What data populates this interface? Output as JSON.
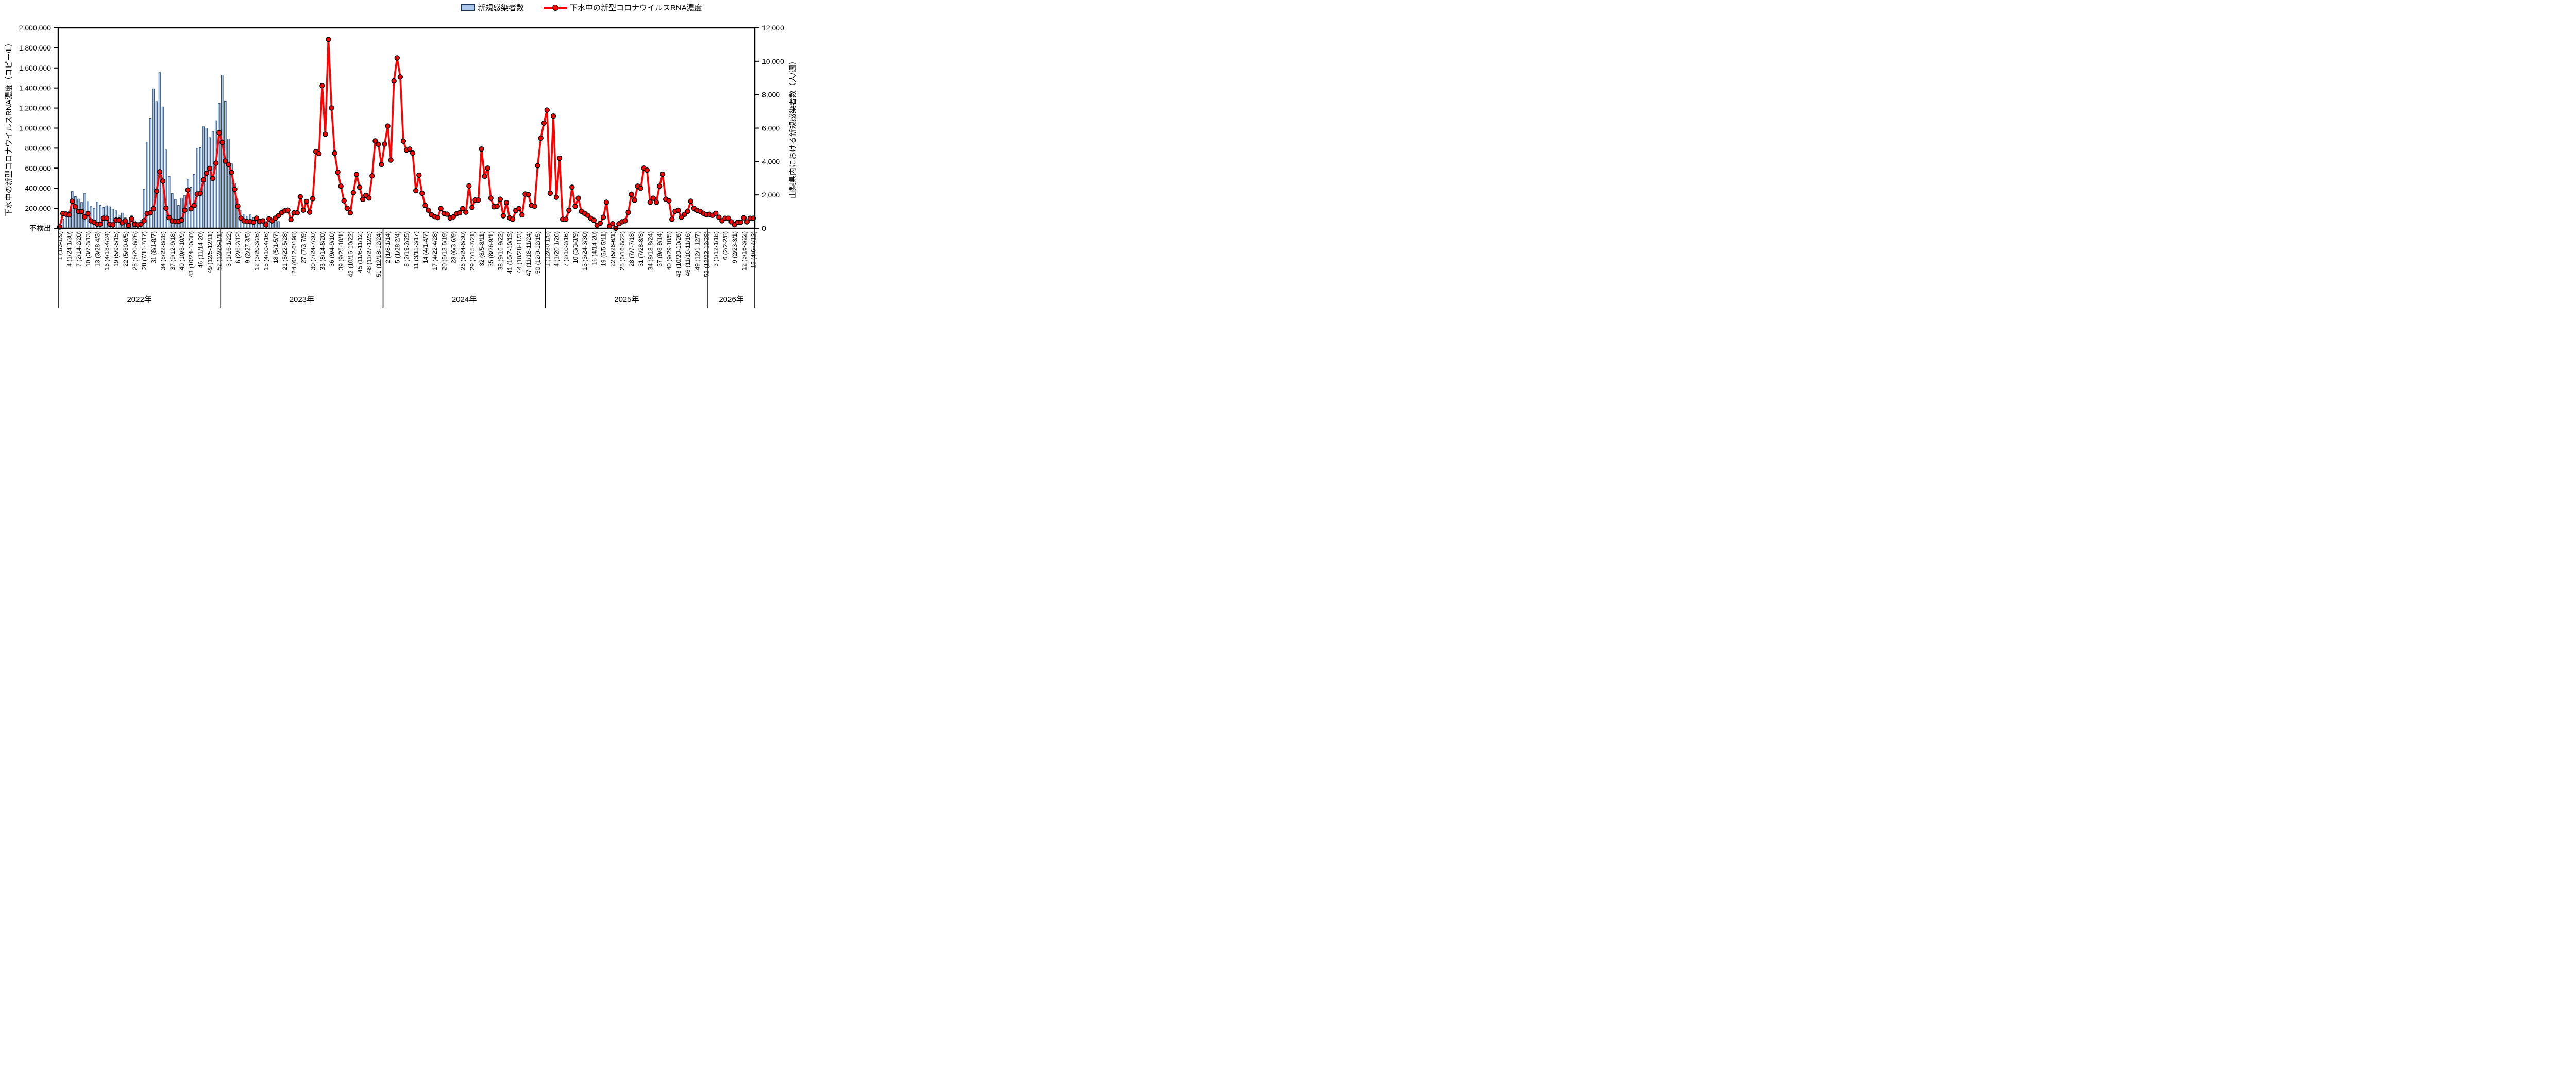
{
  "chart_data": {
    "type": "combo_bar_line",
    "legend_position": "top",
    "background": "#ffffff",
    "axis_color": "#000000",
    "y_left": {
      "label": "下水中の新型コロナウイルスRNA濃度（コピー/L）",
      "max": 2000000,
      "tick_step": 200000,
      "tick_labels": [
        "不検出",
        "200,000",
        "400,000",
        "600,000",
        "800,000",
        "1,000,000",
        "1,200,000",
        "1,400,000",
        "1,600,000",
        "1,800,000",
        "2,000,000"
      ]
    },
    "y_right": {
      "label": "山梨県内における新規感染者数（人/週）",
      "max": 12000,
      "tick_step": 2000,
      "tick_labels": [
        "0",
        "2,000",
        "4,000",
        "6,000",
        "8,000",
        "10,000",
        "12,000"
      ]
    },
    "x_axis": {
      "years": [
        {
          "label": "2022年",
          "weeks": 52,
          "ticks": [
            [
              1,
              "1 (1/3-1/9)"
            ],
            [
              4,
              "4 (1/24-1/30)"
            ],
            [
              7,
              "7 (2/14-2/20)"
            ],
            [
              10,
              "10 (3/7-3/13)"
            ],
            [
              13,
              "13 (3/28-4/3)"
            ],
            [
              16,
              "16 (4/18-4/24)"
            ],
            [
              19,
              "19 (5/9-5/15)"
            ],
            [
              22,
              "22 (5/30-6/5)"
            ],
            [
              25,
              "25 (6/20-6/26)"
            ],
            [
              28,
              "28 (7/11-7/17)"
            ],
            [
              31,
              "31 (8/1-8/7)"
            ],
            [
              34,
              "34 (8/22-8/28)"
            ],
            [
              37,
              "37 (9/12-9/18)"
            ],
            [
              40,
              "40 (10/3-10/9)"
            ],
            [
              43,
              "43 (10/24-10/30)"
            ],
            [
              46,
              "46 (11/14-20)"
            ],
            [
              49,
              "49 (12/5-12/11)"
            ],
            [
              52,
              "52 (12/26-1/1)"
            ]
          ]
        },
        {
          "label": "2023年",
          "weeks": 52,
          "ticks": [
            [
              3,
              "3 (1/16-1/22)"
            ],
            [
              6,
              "6 (2/6-2/12)"
            ],
            [
              9,
              "9 (2/27-3/5)"
            ],
            [
              12,
              "12 (3/20-3/26)"
            ],
            [
              15,
              "15 (4/10-4/16)"
            ],
            [
              18,
              "18 (5/1-5/7)"
            ],
            [
              21,
              "21 (5/22-5/28)"
            ],
            [
              24,
              "24 (6/12-6/198)"
            ],
            [
              27,
              "27 (7/3-7/9)"
            ],
            [
              30,
              "30 (7/24-7/30)"
            ],
            [
              33,
              "33 (8/14-8/20)"
            ],
            [
              36,
              "36 (9/4-9/10)"
            ],
            [
              39,
              "39 (9/25-10/1)"
            ],
            [
              42,
              "42 (10/16-10/22)"
            ],
            [
              45,
              "45 (11/6-11/12)"
            ],
            [
              48,
              "48 (11/27-12/3)"
            ],
            [
              51,
              "51 (12/18-12/24)"
            ]
          ]
        },
        {
          "label": "2024年",
          "weeks": 52,
          "ticks": [
            [
              2,
              "2 (1/8-1/14)"
            ],
            [
              5,
              "5 (1/28-2/4)"
            ],
            [
              8,
              "8 (2/19-2/25)"
            ],
            [
              11,
              "11 (3/11-3/17)"
            ],
            [
              14,
              "14 (4/1-4/7)"
            ],
            [
              17,
              "17 (4/22-4/28)"
            ],
            [
              20,
              "20 (5/13-5/19)"
            ],
            [
              23,
              "23 (6/3-6/9)"
            ],
            [
              26,
              "26 (6/24-6/30)"
            ],
            [
              29,
              "29 (7/15-7/21)"
            ],
            [
              32,
              "32 (8/5-8/11)"
            ],
            [
              35,
              "35 (8/26-9/1)"
            ],
            [
              38,
              "38 (9/16-9/22)"
            ],
            [
              41,
              "41 (10/7-10/13)"
            ],
            [
              44,
              "44 (10/28-11/3)"
            ],
            [
              47,
              "47 (11/18-11/24)"
            ],
            [
              50,
              "50 (12/9-12/15)"
            ]
          ]
        },
        {
          "label": "2025年",
          "weeks": 52,
          "ticks": [
            [
              1,
              "1 (12/30-1/5)"
            ],
            [
              4,
              "4 (1/20-1/26)"
            ],
            [
              7,
              "7 (2/10-2/16)"
            ],
            [
              10,
              "10 (3/3-3/9)"
            ],
            [
              13,
              "13 (3/24-3/30)"
            ],
            [
              16,
              "16 (4/14-20)"
            ],
            [
              19,
              "19 (5/5-5/11)"
            ],
            [
              22,
              "22 (5/26-6/1)"
            ],
            [
              25,
              "25 (6/16-6/22)"
            ],
            [
              28,
              "28 (7/7-7/13)"
            ],
            [
              31,
              "31 (7/28-8/3)"
            ],
            [
              34,
              "34 (8/18-8/24)"
            ],
            [
              37,
              "37 (9/8-9/14)"
            ],
            [
              40,
              "40 (9/29-10/5)"
            ],
            [
              43,
              "43 (10/20-10/26)"
            ],
            [
              46,
              "46 (11/10-11/16)"
            ],
            [
              49,
              "49 (12/1-12/7)"
            ],
            [
              52,
              "52 (12/22-12/28)"
            ]
          ]
        },
        {
          "label": "2026年",
          "weeks": 15,
          "ticks": [
            [
              3,
              "3 (1/12-1/18)"
            ],
            [
              6,
              "6 (2/2-2/8)"
            ],
            [
              9,
              "9 (2/23-3/1)"
            ],
            [
              12,
              "12 (3/16-3/22)"
            ],
            [
              15,
              "15 (4/6~4/12)"
            ]
          ]
        }
      ]
    },
    "series": [
      {
        "name": "新規感染者数",
        "type": "bar",
        "axis": "right",
        "fill": "#A9C6E8",
        "border": "#17375E",
        "values": [
          100,
          550,
          1000,
          1000,
          2200,
          1900,
          1750,
          1550,
          2100,
          1600,
          1300,
          1200,
          1580,
          1370,
          1250,
          1350,
          1290,
          1150,
          1050,
          790,
          915,
          625,
          455,
          750,
          455,
          330,
          500,
          2340,
          5170,
          6590,
          8350,
          7590,
          9320,
          7270,
          4690,
          3110,
          2090,
          1730,
          1370,
          1810,
          1970,
          2940,
          2455,
          3220,
          4790,
          4830,
          6080,
          6000,
          5430,
          5800,
          6440,
          7490,
          9180,
          7610,
          5350,
          3860,
          2700,
          1690,
          1090,
          845,
          725,
          805,
          645,
          604,
          523,
          483,
          443,
          403,
          443,
          483,
          403
        ]
      },
      {
        "name": "下水中の新型コロナウイルスRNA濃度",
        "type": "line",
        "axis": "left",
        "color": "#FF0000",
        "marker": "circle",
        "values": [
          13000,
          148000,
          141000,
          134000,
          270000,
          215000,
          168000,
          168000,
          114000,
          148000,
          74000,
          60000,
          40000,
          40000,
          101000,
          101000,
          40000,
          34000,
          81000,
          81000,
          54000,
          74000,
          27000,
          94000,
          40000,
          34000,
          40000,
          74000,
          148000,
          154000,
          195000,
          370000,
          564000,
          470000,
          201000,
          107000,
          74000,
          67000,
          67000,
          81000,
          181000,
          382000,
          195000,
          228000,
          342000,
          349000,
          483000,
          550000,
          597000,
          497000,
          650000,
          953000,
          859000,
          671000,
          637000,
          557000,
          389000,
          221000,
          101000,
          74000,
          67000,
          67000,
          60000,
          101000,
          67000,
          74000,
          34000,
          94000,
          74000,
          101000,
          127000,
          154000,
          174000,
          181000,
          87000,
          155000,
          154000,
          315000,
          181000,
          268000,
          161000,
          295000,
          765000,
          745000,
          1423000,
          939000,
          1886000,
          1201000,
          750000,
          560000,
          420000,
          275000,
          201000,
          154000,
          356000,
          537000,
          409000,
          289000,
          329000,
          302000,
          523000,
          872000,
          839000,
          637000,
          840000,
          1020000,
          680000,
          1470000,
          1700000,
          1510000,
          870000,
          780000,
          790000,
          750000,
          376000,
          530000,
          349000,
          228000,
          181000,
          134000,
          117000,
          107000,
          197000,
          148000,
          141000,
          103000,
          114000,
          144000,
          154000,
          197000,
          161000,
          423000,
          208000,
          282000,
          282000,
          790000,
          520000,
          600000,
          300000,
          215000,
          220000,
          290000,
          125000,
          256000,
          104000,
          90000,
          177000,
          197000,
          134000,
          342000,
          335000,
          228000,
          221000,
          624000,
          900000,
          1050000,
          1180000,
          350000,
          1120000,
          310000,
          700000,
          90000,
          90000,
          180000,
          410000,
          220000,
          300000,
          170000,
          150000,
          130000,
          100000,
          80000,
          30000,
          50000,
          110000,
          260000,
          20000,
          45000,
          0,
          45000,
          65000,
          75000,
          160000,
          340000,
          280000,
          420000,
          400000,
          600000,
          580000,
          260000,
          300000,
          260000,
          420000,
          540000,
          290000,
          275000,
          90000,
          170000,
          180000,
          110000,
          140000,
          170000,
          270000,
          200000,
          180000,
          170000,
          150000,
          135000,
          140000,
          130000,
          150000,
          110000,
          75000,
          100000,
          100000,
          65000,
          35000,
          60000,
          60000,
          105000,
          65000,
          100000,
          100000
        ]
      }
    ]
  }
}
